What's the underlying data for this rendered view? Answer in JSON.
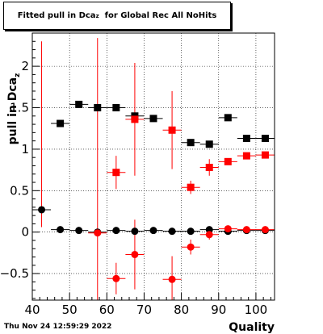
{
  "header": {
    "title_prefix": "Fitted pull in Dca",
    "title_sub": "z",
    "title_suffix": "  for Global Rec All NoHits"
  },
  "footer": {
    "timestamp": "Thu Nov 24 12:59:29 2022"
  },
  "chart_data": {
    "type": "scatter",
    "title": "Fitted pull in Dca_z  for Global Rec All NoHits",
    "xlabel": "Quality",
    "ylabel_main": "pull in Dca",
    "ylabel_sub": "z",
    "xlim": [
      40,
      105
    ],
    "ylim": [
      -0.82,
      2.4
    ],
    "x_ticks": [
      40,
      50,
      60,
      70,
      80,
      90,
      100
    ],
    "y_ticks": [
      -0.5,
      0,
      0.5,
      1,
      1.5,
      2
    ],
    "y_tick_labels": [
      "−0.5",
      "0",
      "0.5",
      "1",
      "1.5",
      "2"
    ],
    "grid": true,
    "series": [
      {
        "marker": "square",
        "color": "#000000",
        "points": [
          {
            "x": 47.5,
            "y": 1.31,
            "xerr": 2.5,
            "yerr": 0.03
          },
          {
            "x": 52.5,
            "y": 1.54,
            "xerr": 2.5,
            "yerr": 0.02
          },
          {
            "x": 57.5,
            "y": 1.5,
            "xerr": 2.5,
            "yerr": 0.02
          },
          {
            "x": 62.5,
            "y": 1.5,
            "xerr": 2.5,
            "yerr": 0.02
          },
          {
            "x": 67.5,
            "y": 1.4,
            "xerr": 2.5,
            "yerr": 0.02
          },
          {
            "x": 72.5,
            "y": 1.37,
            "xerr": 2.5,
            "yerr": 0.02
          },
          {
            "x": 82.5,
            "y": 1.08,
            "xerr": 2.5,
            "yerr": 0.02
          },
          {
            "x": 87.5,
            "y": 1.06,
            "xerr": 2.5,
            "yerr": 0.02
          },
          {
            "x": 92.5,
            "y": 1.38,
            "xerr": 2.5,
            "yerr": 0.02
          },
          {
            "x": 97.5,
            "y": 1.13,
            "xerr": 2.5,
            "yerr": 0.02
          },
          {
            "x": 102.5,
            "y": 1.13,
            "xerr": 2.5,
            "yerr": 0.02
          }
        ]
      },
      {
        "marker": "circle",
        "color": "#000000",
        "points": [
          {
            "x": 42.5,
            "y": 0.27,
            "xerr": 2.5,
            "yerr": 0.01
          },
          {
            "x": 47.5,
            "y": 0.03,
            "xerr": 2.5,
            "yerr": 0.01
          },
          {
            "x": 52.5,
            "y": 0.02,
            "xerr": 2.5,
            "yerr": 0.01
          },
          {
            "x": 57.5,
            "y": 0.0,
            "xerr": 2.5,
            "yerr": 0.01
          },
          {
            "x": 62.5,
            "y": 0.02,
            "xerr": 2.5,
            "yerr": 0.01
          },
          {
            "x": 67.5,
            "y": 0.01,
            "xerr": 2.5,
            "yerr": 0.01
          },
          {
            "x": 72.5,
            "y": 0.02,
            "xerr": 2.5,
            "yerr": 0.01
          },
          {
            "x": 77.5,
            "y": 0.01,
            "xerr": 2.5,
            "yerr": 0.01
          },
          {
            "x": 82.5,
            "y": 0.01,
            "xerr": 2.5,
            "yerr": 0.01
          },
          {
            "x": 87.5,
            "y": 0.03,
            "xerr": 2.5,
            "yerr": 0.01
          },
          {
            "x": 92.5,
            "y": 0.01,
            "xerr": 2.5,
            "yerr": 0.01
          },
          {
            "x": 97.5,
            "y": 0.02,
            "xerr": 2.5,
            "yerr": 0.01
          },
          {
            "x": 102.5,
            "y": 0.02,
            "xerr": 2.5,
            "yerr": 0.01
          }
        ]
      },
      {
        "marker": "square",
        "color": "#ff0000",
        "points": [
          {
            "x": 62.5,
            "y": 0.72,
            "xerr": 2.5,
            "yerr": 0.2
          },
          {
            "x": 67.5,
            "y": 1.36,
            "xerr": 2.5,
            "yerr": 0.68
          },
          {
            "x": 77.5,
            "y": 1.23,
            "xerr": 2.5,
            "yerr": 0.47
          },
          {
            "x": 82.5,
            "y": 0.54,
            "xerr": 2.5,
            "yerr": 0.08
          },
          {
            "x": 87.5,
            "y": 0.78,
            "xerr": 2.5,
            "yerr": 0.1
          },
          {
            "x": 92.5,
            "y": 0.85,
            "xerr": 2.5,
            "yerr": 0.04
          },
          {
            "x": 97.5,
            "y": 0.92,
            "xerr": 2.5,
            "yerr": 0.03
          },
          {
            "x": 102.5,
            "y": 0.93,
            "xerr": 2.5,
            "yerr": 0.02
          }
        ]
      },
      {
        "marker": "circle",
        "color": "#ff0000",
        "points": [
          {
            "x": 57.5,
            "y": -0.01,
            "xerr": 2.5,
            "yerr": 2.35
          },
          {
            "x": 62.5,
            "y": -0.56,
            "xerr": 2.5,
            "yerr": 0.19
          },
          {
            "x": 67.5,
            "y": -0.27,
            "xerr": 2.5,
            "yerr": 0.42
          },
          {
            "x": 77.5,
            "y": -0.57,
            "xerr": 2.5,
            "yerr": 0.28
          },
          {
            "x": 82.5,
            "y": -0.18,
            "xerr": 2.5,
            "yerr": 0.09
          },
          {
            "x": 87.5,
            "y": -0.03,
            "xerr": 2.5,
            "yerr": 0.06
          },
          {
            "x": 92.5,
            "y": 0.04,
            "xerr": 2.5,
            "yerr": 0.02
          },
          {
            "x": 97.5,
            "y": 0.03,
            "xerr": 2.5,
            "yerr": 0.02
          },
          {
            "x": 102.5,
            "y": 0.03,
            "xerr": 2.5,
            "yerr": 0.01
          }
        ]
      }
    ],
    "extra_error_bar": {
      "x": 42.5,
      "y": 1.18,
      "yerr": 1.12,
      "color": "#ff0000"
    }
  }
}
